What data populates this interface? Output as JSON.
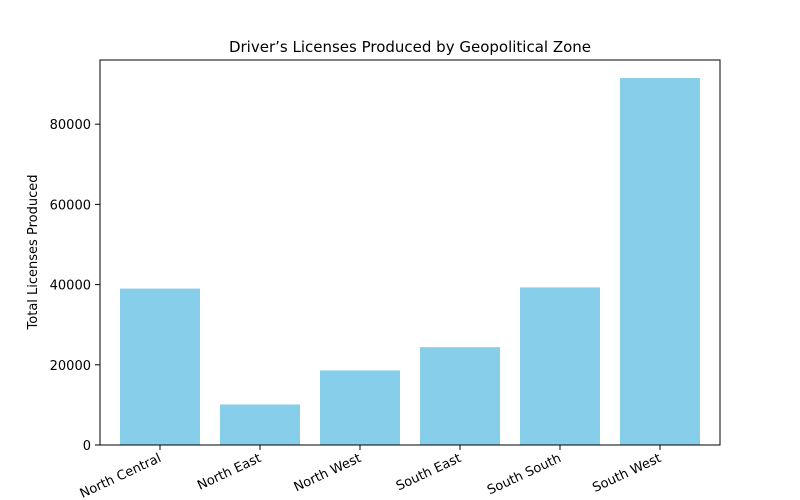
{
  "chart_data": {
    "type": "bar",
    "title": "Driver’s Licenses Produced by Geopolitical Zone",
    "xlabel": "",
    "ylabel": "Total Licenses Produced",
    "categories": [
      "North Central",
      "North East",
      "North West",
      "South East",
      "South South",
      "South West"
    ],
    "values": [
      39000,
      10100,
      18600,
      24400,
      39300,
      91500
    ],
    "ylim": [
      0,
      96000
    ],
    "yticks": [
      0,
      20000,
      40000,
      60000,
      80000
    ],
    "bar_color": "#87ceeb",
    "grid": false,
    "legend": "none"
  }
}
